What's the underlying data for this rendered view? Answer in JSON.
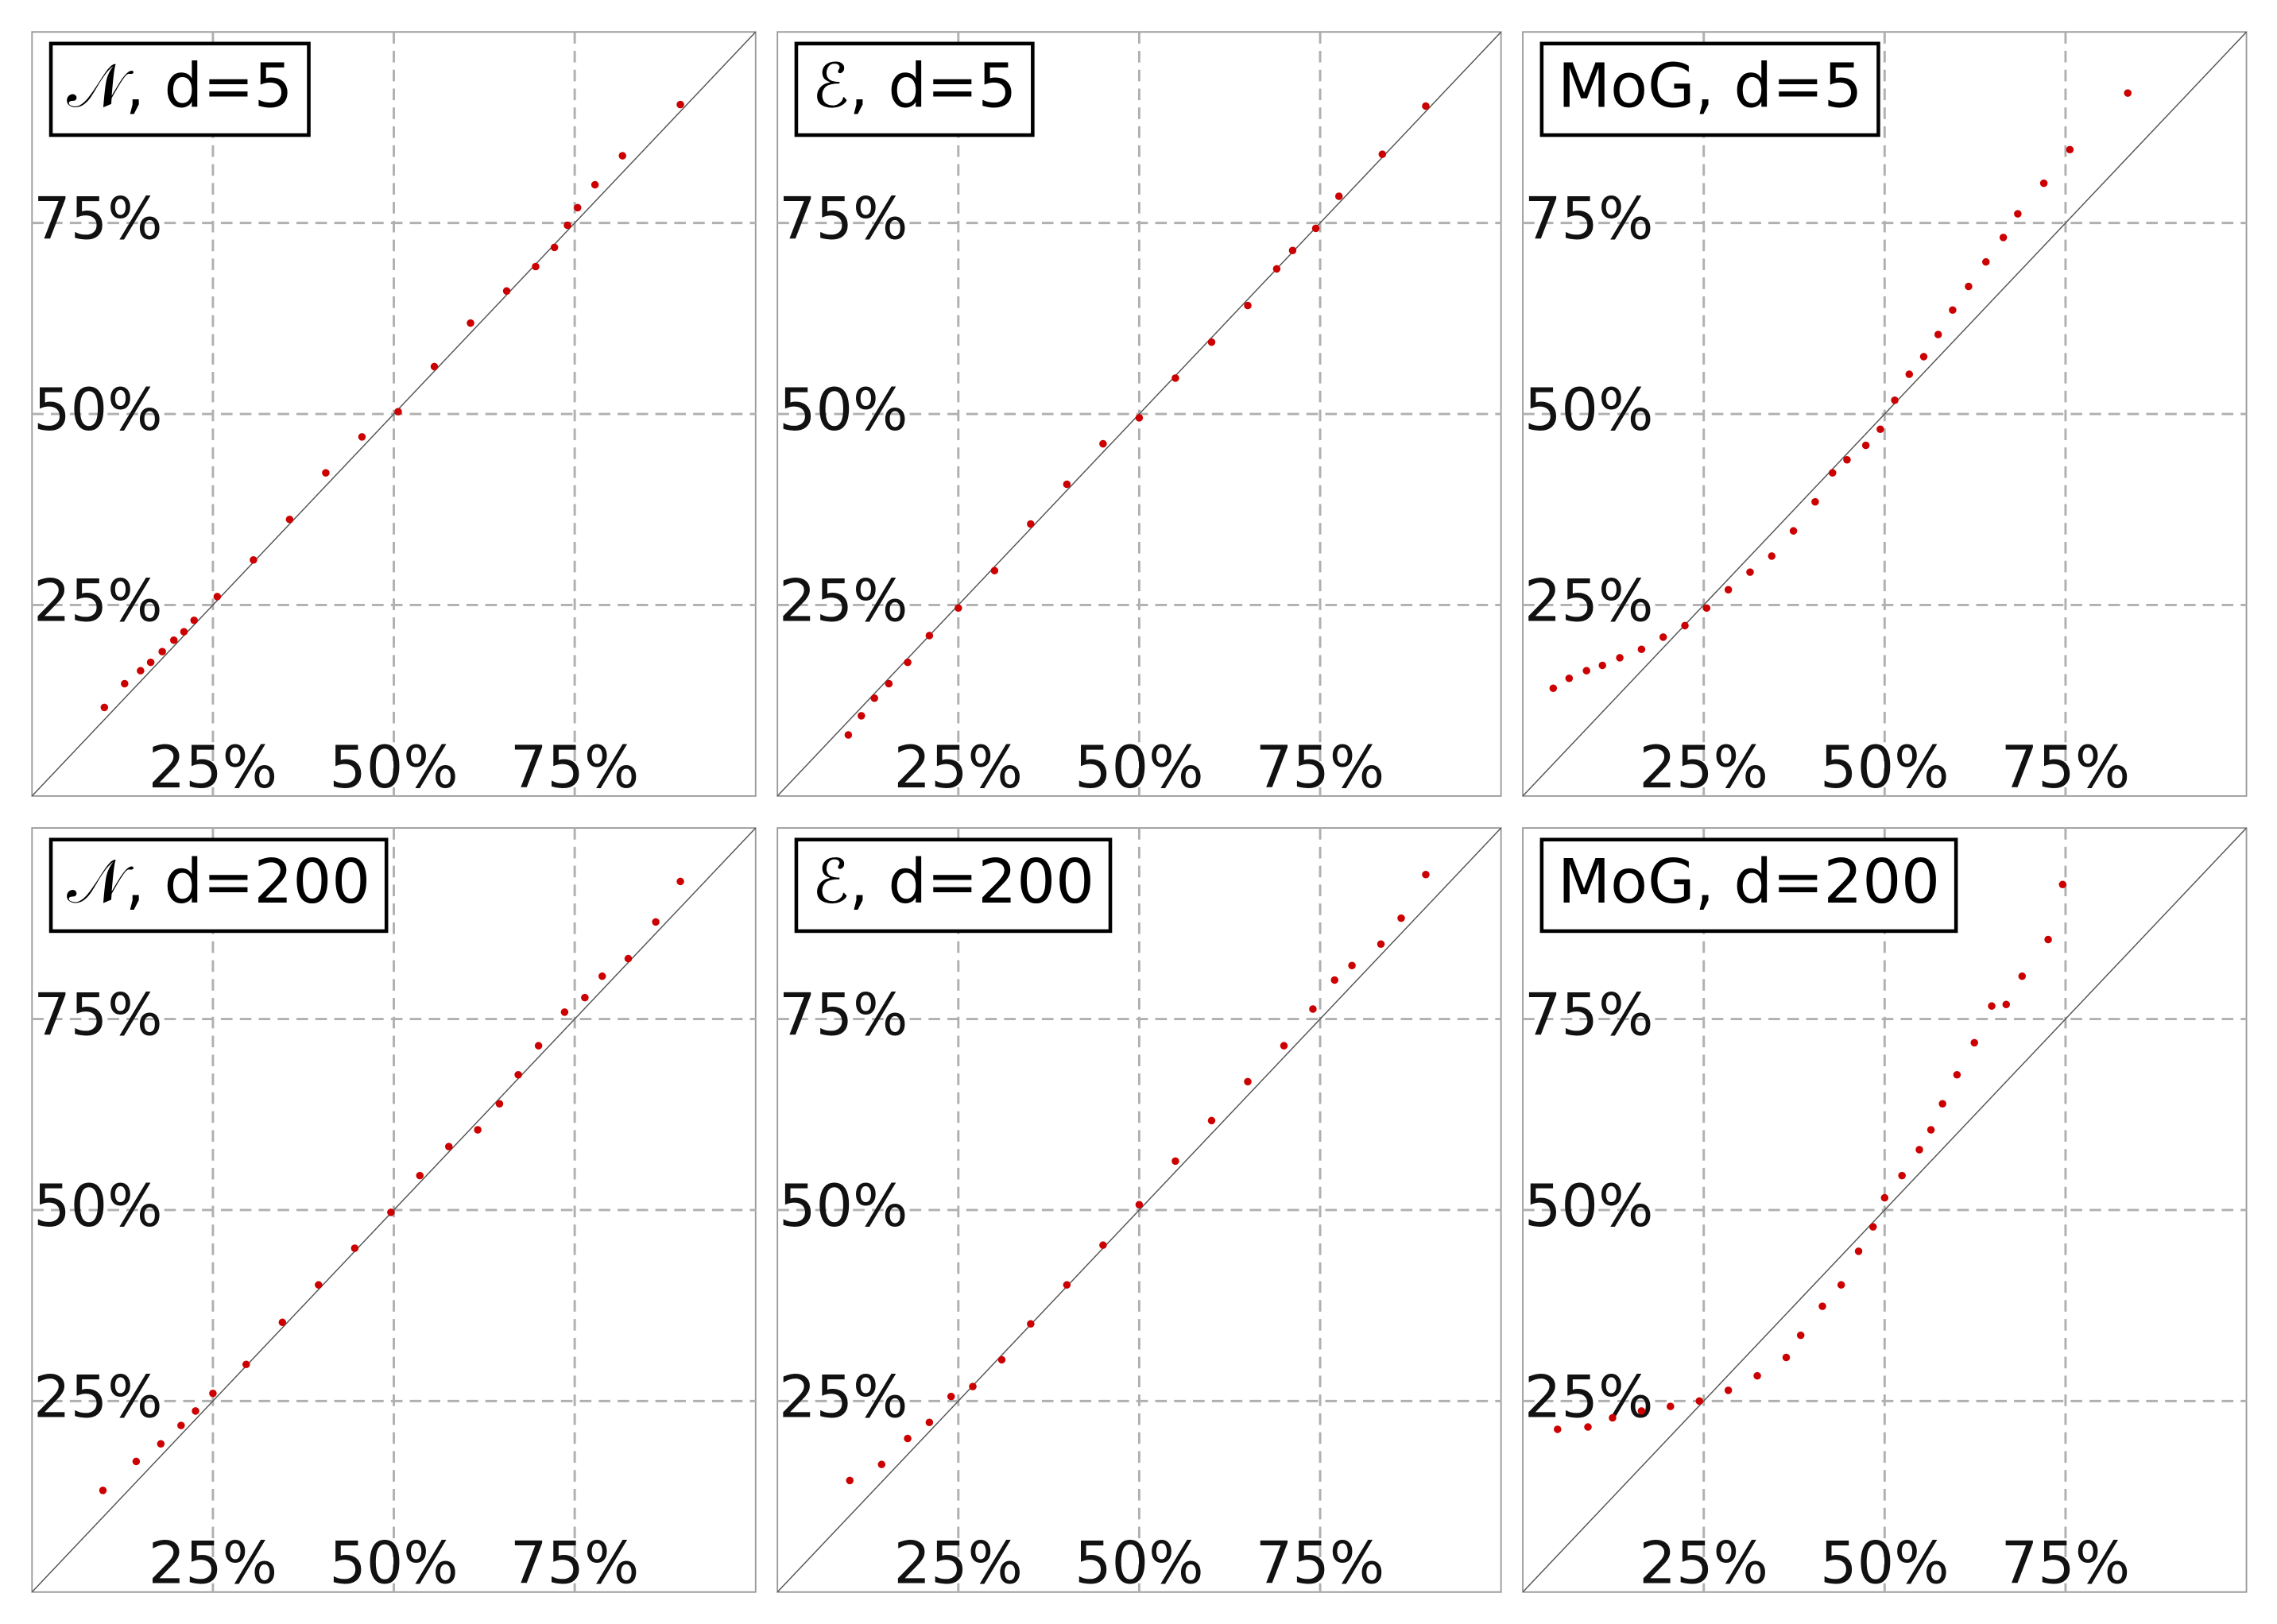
{
  "chart_data": [
    {
      "type": "scatter",
      "title": "𝒩, d=5",
      "color": "#cc0000",
      "grid": true,
      "diagonal": true,
      "xlim": [
        0,
        100
      ],
      "ylim": [
        0,
        100
      ],
      "xticks": [
        {
          "value": 25,
          "label": "25%"
        },
        {
          "value": 50,
          "label": "50%"
        },
        {
          "value": 75,
          "label": "75%"
        }
      ],
      "yticks": [
        {
          "value": 25,
          "label": "25%"
        },
        {
          "value": 50,
          "label": "50%"
        },
        {
          "value": 75,
          "label": "75%"
        }
      ],
      "x": [
        10,
        12.8,
        15,
        16.4,
        18,
        19.6,
        21,
        22.4,
        25.6,
        30.6,
        35.6,
        40.6,
        45.6,
        50.6,
        55.6,
        60.6,
        65.6,
        69.6,
        72.2,
        74,
        75.4,
        77.8,
        81.6,
        89.6
      ],
      "y": [
        11.6,
        14.7,
        16.4,
        17.5,
        18.9,
        20.4,
        21.5,
        23,
        26.1,
        30.9,
        36.2,
        42.3,
        47,
        50.3,
        56.2,
        61.9,
        66.1,
        69.3,
        71.8,
        74.7,
        77,
        80,
        83.8,
        90.5
      ]
    },
    {
      "type": "scatter",
      "title": "ℰ, d=5",
      "color": "#cc0000",
      "grid": true,
      "diagonal": true,
      "xlim": [
        0,
        100
      ],
      "ylim": [
        0,
        100
      ],
      "xticks": [
        {
          "value": 25,
          "label": "25%"
        },
        {
          "value": 50,
          "label": "50%"
        },
        {
          "value": 75,
          "label": "75%"
        }
      ],
      "yticks": [
        {
          "value": 25,
          "label": "25%"
        },
        {
          "value": 50,
          "label": "50%"
        },
        {
          "value": 75,
          "label": "75%"
        }
      ],
      "x": [
        9.8,
        11.6,
        13.4,
        15.4,
        18,
        21,
        25,
        30,
        35,
        40,
        45,
        50,
        55,
        60,
        65,
        69,
        71.2,
        74.4,
        77.6,
        83.6,
        89.6
      ],
      "y": [
        8,
        10.5,
        12.8,
        14.7,
        17.5,
        21,
        24.6,
        29.5,
        35.6,
        40.8,
        46.1,
        49.5,
        54.7,
        59.4,
        64.2,
        69,
        71.4,
        74.3,
        78.5,
        84,
        90.3
      ]
    },
    {
      "type": "scatter",
      "title": "MoG, d=5",
      "color": "#cc0000",
      "grid": true,
      "diagonal": true,
      "xlim": [
        0,
        100
      ],
      "ylim": [
        0,
        100
      ],
      "xticks": [
        {
          "value": 25,
          "label": "25%"
        },
        {
          "value": 50,
          "label": "50%"
        },
        {
          "value": 75,
          "label": "75%"
        }
      ],
      "yticks": [
        {
          "value": 25,
          "label": "25%"
        },
        {
          "value": 50,
          "label": "50%"
        },
        {
          "value": 75,
          "label": "75%"
        }
      ],
      "x": [
        4.2,
        6.4,
        8.8,
        11,
        13.4,
        16.4,
        19.4,
        22.4,
        25.4,
        28.4,
        31.4,
        34.4,
        37.4,
        40.4,
        42.8,
        44.8,
        47.4,
        49.4,
        51.4,
        53.4,
        55.4,
        57.4,
        59.4,
        61.6,
        64,
        66.4,
        68.4,
        72,
        75.6,
        83.6
      ],
      "y": [
        14.1,
        15.4,
        16.4,
        17.1,
        18.1,
        19.2,
        20.8,
        22.3,
        24.6,
        27,
        29.3,
        31.4,
        34.7,
        38.5,
        42.3,
        44,
        45.9,
        48,
        51.8,
        55.2,
        57.5,
        60.4,
        63.6,
        66.7,
        69.9,
        73.1,
        76.2,
        80.2,
        84.6,
        92
      ]
    },
    {
      "type": "scatter",
      "title": "𝒩, d=200",
      "color": "#cc0000",
      "grid": true,
      "diagonal": true,
      "xlim": [
        0,
        100
      ],
      "ylim": [
        0,
        100
      ],
      "xticks": [
        {
          "value": 25,
          "label": "25%"
        },
        {
          "value": 50,
          "label": "50%"
        },
        {
          "value": 75,
          "label": "75%"
        }
      ],
      "yticks": [
        {
          "value": 25,
          "label": "25%"
        },
        {
          "value": 50,
          "label": "50%"
        },
        {
          "value": 75,
          "label": "75%"
        }
      ],
      "x": [
        9.8,
        14.4,
        17.8,
        20.6,
        22.6,
        25,
        29.6,
        34.6,
        39.6,
        44.6,
        49.6,
        53.6,
        57.6,
        61.6,
        64.6,
        67.2,
        70,
        73.6,
        76.4,
        78.8,
        82.4,
        86.2,
        89.6
      ],
      "y": [
        13.3,
        17.1,
        19.4,
        21.8,
        23.7,
        26,
        29.8,
        35.3,
        40.2,
        45,
        49.7,
        54.5,
        58.3,
        60.5,
        63.9,
        67.7,
        71.5,
        75.9,
        77.8,
        80.6,
        82.9,
        87.7,
        93
      ]
    },
    {
      "type": "scatter",
      "title": "ℰ, d=200",
      "color": "#cc0000",
      "grid": true,
      "diagonal": true,
      "xlim": [
        0,
        100
      ],
      "ylim": [
        0,
        100
      ],
      "xticks": [
        {
          "value": 25,
          "label": "25%"
        },
        {
          "value": 50,
          "label": "50%"
        },
        {
          "value": 75,
          "label": "75%"
        }
      ],
      "yticks": [
        {
          "value": 25,
          "label": "25%"
        },
        {
          "value": 50,
          "label": "50%"
        },
        {
          "value": 75,
          "label": "75%"
        }
      ],
      "x": [
        10,
        14.4,
        18,
        21,
        24,
        27,
        31,
        35,
        40,
        45,
        50,
        55,
        60,
        65,
        70,
        74,
        77,
        79.4,
        83.4,
        86.2,
        89.6
      ],
      "y": [
        14.6,
        16.7,
        20.1,
        22.2,
        25.6,
        26.9,
        30.4,
        35.1,
        40.2,
        45.4,
        50.7,
        56.4,
        61.7,
        66.8,
        71.5,
        76.3,
        80.1,
        82,
        84.8,
        88.2,
        93.9
      ]
    },
    {
      "type": "scatter",
      "title": "MoG, d=200",
      "color": "#cc0000",
      "grid": true,
      "diagonal": true,
      "xlim": [
        0,
        100
      ],
      "ylim": [
        0,
        100
      ],
      "xticks": [
        {
          "value": 25,
          "label": "25%"
        },
        {
          "value": 50,
          "label": "50%"
        },
        {
          "value": 75,
          "label": "75%"
        }
      ],
      "yticks": [
        {
          "value": 25,
          "label": "25%"
        },
        {
          "value": 50,
          "label": "50%"
        },
        {
          "value": 75,
          "label": "75%"
        }
      ],
      "x": [
        4.8,
        9,
        12.4,
        16.4,
        20.4,
        24.4,
        28.4,
        32.4,
        36.4,
        38.4,
        41.4,
        44,
        46.4,
        48.4,
        50,
        52.4,
        54.8,
        56.4,
        58,
        60,
        62.4,
        64.8,
        66.8,
        69,
        72.6,
        74.6
      ],
      "y": [
        21.3,
        21.6,
        22.8,
        23.7,
        24.3,
        25,
        26.4,
        28.3,
        30.7,
        33.6,
        37.4,
        40.2,
        44.6,
        47.8,
        51.6,
        54.5,
        57.9,
        60.5,
        63.9,
        67.7,
        71.9,
        76.7,
        76.9,
        80.6,
        85.4,
        92.6
      ]
    }
  ]
}
